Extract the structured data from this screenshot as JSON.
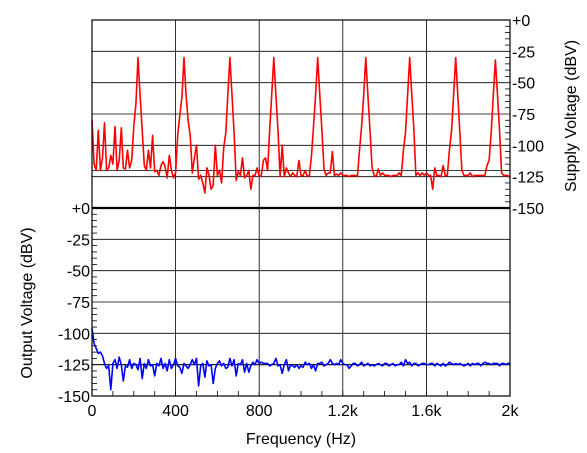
{
  "chart_data": {
    "type": "line",
    "x_unit": "Hz",
    "x_tick_labels": [
      "0",
      "400",
      "800",
      "1.2k",
      "1.6k",
      "2k"
    ],
    "x_ticks": [
      0,
      400,
      800,
      1200,
      1600,
      2000
    ],
    "xlim": [
      0,
      2000
    ],
    "xlabel": "Frequency (Hz)",
    "grid": true,
    "panels": [
      {
        "id": "supply",
        "ylabel": "Supply Voltage (dBV)",
        "y_axis_side": "right",
        "ylim": [
          -150,
          0
        ],
        "y_ticks": [
          0,
          -25,
          -50,
          -75,
          -100,
          -125,
          -150
        ],
        "y_tick_labels": [
          "+0",
          "-25",
          "-50",
          "-75",
          "-100",
          "-125",
          "-150"
        ],
        "series": [
          {
            "color": "#ff0000",
            "noise_floor_dbv": -120,
            "x": [
              0,
              10,
              20,
              30,
              40,
              50,
              60,
              70,
              80,
              90,
              100,
              110,
              120,
              130,
              140,
              150,
              160,
              170,
              180,
              190,
              200,
              210,
              220,
              230,
              240,
              250,
              260,
              270,
              280,
              290,
              300,
              310,
              320,
              330,
              340,
              350,
              360,
              370,
              380,
              390,
              400,
              410,
              420,
              430,
              440,
              450,
              460,
              470,
              480,
              490,
              500,
              510,
              520,
              530,
              540,
              550,
              560,
              570,
              580,
              590,
              600,
              610,
              620,
              630,
              640,
              650,
              660,
              670,
              680,
              690,
              700,
              710,
              720,
              730,
              740,
              750,
              760,
              770,
              780,
              790,
              800,
              810,
              820,
              830,
              840,
              850,
              860,
              870,
              880,
              890,
              900,
              910,
              920,
              930,
              940,
              950,
              960,
              970,
              980,
              990,
              1000,
              1010,
              1020,
              1030,
              1040,
              1050,
              1060,
              1070,
              1080,
              1090,
              1100,
              1110,
              1120,
              1130,
              1140,
              1150,
              1160,
              1170,
              1180,
              1190,
              1200,
              1210,
              1220,
              1230,
              1240,
              1250,
              1260,
              1270,
              1280,
              1290,
              1300,
              1310,
              1320,
              1330,
              1340,
              1350,
              1360,
              1370,
              1380,
              1390,
              1400,
              1410,
              1420,
              1430,
              1440,
              1450,
              1460,
              1470,
              1480,
              1490,
              1500,
              1510,
              1520,
              1530,
              1540,
              1550,
              1560,
              1570,
              1580,
              1590,
              1600,
              1610,
              1620,
              1630,
              1640,
              1650,
              1660,
              1670,
              1680,
              1690,
              1700,
              1710,
              1720,
              1730,
              1740,
              1750,
              1760,
              1770,
              1780,
              1790,
              1800,
              1810,
              1820,
              1830,
              1840,
              1850,
              1860,
              1870,
              1880,
              1890,
              1900,
              1910,
              1920,
              1930,
              1940,
              1950,
              1960,
              1970,
              1980,
              1990,
              2000
            ],
            "y": [
              -80,
              -115,
              -120,
              -88,
              -120,
              -110,
              -82,
              -120,
              -118,
              -108,
              -115,
              -85,
              -120,
              -112,
              -86,
              -118,
              -119,
              -104,
              -118,
              -112,
              -85,
              -67,
              -30,
              -60,
              -88,
              -116,
              -120,
              -104,
              -118,
              -92,
              -121,
              -120,
              -124,
              -116,
              -113,
              -117,
              -126,
              -108,
              -120,
              -126,
              -122,
              -92,
              -76,
              -62,
              -30,
              -60,
              -80,
              -92,
              -122,
              -110,
              -100,
              -127,
              -124,
              -130,
              -138,
              -118,
              -124,
              -135,
              -132,
              -100,
              -124,
              -120,
              -130,
              -102,
              -90,
              -60,
              -30,
              -60,
              -90,
              -128,
              -121,
              -124,
              -110,
              -126,
              -124,
              -120,
              -135,
              -124,
              -124,
              -118,
              -125,
              -124,
              -112,
              -110,
              -120,
              -89,
              -60,
              -30,
              -60,
              -88,
              -125,
              -100,
              -125,
              -118,
              -122,
              -125,
              -122,
              -124,
              -125,
              -112,
              -124,
              -124,
              -120,
              -125,
              -124,
              -108,
              -85,
              -60,
              -30,
              -60,
              -88,
              -119,
              -124,
              -122,
              -122,
              -105,
              -124,
              -123,
              -124,
              -122,
              -124,
              -124,
              -124,
              -125,
              -124,
              -124,
              -124,
              -125,
              -104,
              -85,
              -60,
              -30,
              -60,
              -88,
              -118,
              -124,
              -125,
              -119,
              -124,
              -122,
              -124,
              -124,
              -124,
              -125,
              -124,
              -124,
              -124,
              -122,
              -124,
              -104,
              -90,
              -60,
              -30,
              -60,
              -88,
              -124,
              -122,
              -124,
              -122,
              -124,
              -122,
              -124,
              -124,
              -135,
              -118,
              -124,
              -124,
              -125,
              -116,
              -124,
              -124,
              -104,
              -89,
              -60,
              -30,
              -60,
              -89,
              -120,
              -124,
              -124,
              -124,
              -122,
              -125,
              -124,
              -124,
              -124,
              -124,
              -124,
              -124,
              -116,
              -112,
              -90,
              -60,
              -32,
              -60,
              -89,
              -122,
              -124,
              -124,
              -124,
              -126
            ]
          }
        ]
      },
      {
        "id": "output",
        "ylabel": "Output Voltage (dBV)",
        "y_axis_side": "left",
        "ylim": [
          -150,
          0
        ],
        "y_ticks": [
          0,
          -25,
          -50,
          -75,
          -100,
          -125,
          -150
        ],
        "y_tick_labels": [
          "+0",
          "-25",
          "-50",
          "-75",
          "-100",
          "-125",
          "-150"
        ],
        "series": [
          {
            "color": "#0000ff",
            "noise_floor_dbv": -125,
            "x": [
              0,
              10,
              20,
              30,
              40,
              50,
              60,
              70,
              80,
              90,
              100,
              110,
              120,
              130,
              140,
              150,
              160,
              170,
              180,
              190,
              200,
              210,
              220,
              230,
              240,
              250,
              260,
              270,
              280,
              290,
              300,
              310,
              320,
              330,
              340,
              350,
              360,
              370,
              380,
              390,
              400,
              410,
              420,
              430,
              440,
              450,
              460,
              470,
              480,
              490,
              500,
              510,
              520,
              530,
              540,
              550,
              560,
              570,
              580,
              590,
              600,
              610,
              620,
              630,
              640,
              650,
              660,
              670,
              680,
              690,
              700,
              710,
              720,
              730,
              740,
              750,
              760,
              770,
              780,
              790,
              800,
              810,
              820,
              830,
              840,
              850,
              860,
              870,
              880,
              890,
              900,
              910,
              920,
              930,
              940,
              950,
              960,
              970,
              980,
              990,
              1000,
              1010,
              1020,
              1030,
              1040,
              1050,
              1060,
              1070,
              1080,
              1090,
              1100,
              1110,
              1120,
              1130,
              1140,
              1150,
              1160,
              1170,
              1180,
              1190,
              1200,
              1210,
              1220,
              1230,
              1240,
              1250,
              1260,
              1270,
              1280,
              1290,
              1300,
              1310,
              1320,
              1330,
              1340,
              1350,
              1360,
              1370,
              1380,
              1390,
              1400,
              1410,
              1420,
              1430,
              1440,
              1450,
              1460,
              1470,
              1480,
              1490,
              1500,
              1510,
              1520,
              1530,
              1540,
              1550,
              1560,
              1570,
              1580,
              1590,
              1600,
              1610,
              1620,
              1630,
              1640,
              1650,
              1660,
              1670,
              1680,
              1690,
              1700,
              1710,
              1720,
              1730,
              1740,
              1750,
              1760,
              1770,
              1780,
              1790,
              1800,
              1810,
              1820,
              1830,
              1840,
              1850,
              1860,
              1870,
              1880,
              1890,
              1900,
              1910,
              1920,
              1930,
              1940,
              1950,
              1960,
              1970,
              1980,
              1990,
              2000
            ],
            "y": [
              -96,
              -108,
              -112,
              -116,
              -115,
              -118,
              -124,
              -128,
              -126,
              -145,
              -124,
              -121,
              -128,
              -119,
              -125,
              -138,
              -126,
              -127,
              -121,
              -128,
              -124,
              -125,
              -129,
              -120,
              -136,
              -124,
              -128,
              -121,
              -126,
              -125,
              -134,
              -124,
              -126,
              -120,
              -128,
              -124,
              -130,
              -121,
              -128,
              -125,
              -120,
              -126,
              -127,
              -132,
              -124,
              -126,
              -128,
              -125,
              -121,
              -125,
              -120,
              -142,
              -126,
              -124,
              -135,
              -122,
              -126,
              -125,
              -140,
              -128,
              -124,
              -122,
              -126,
              -124,
              -128,
              -127,
              -120,
              -126,
              -121,
              -134,
              -124,
              -125,
              -121,
              -131,
              -124,
              -131,
              -126,
              -123,
              -125,
              -121,
              -124,
              -123,
              -124,
              -124,
              -124,
              -126,
              -125,
              -124,
              -120,
              -126,
              -125,
              -132,
              -125,
              -121,
              -130,
              -125,
              -126,
              -127,
              -125,
              -128,
              -126,
              -127,
              -123,
              -125,
              -124,
              -128,
              -125,
              -130,
              -124,
              -124,
              -123,
              -126,
              -125,
              -124,
              -121,
              -124,
              -125,
              -124,
              -125,
              -121,
              -124,
              -125,
              -125,
              -128,
              -126,
              -124,
              -124,
              -126,
              -125,
              -123,
              -126,
              -125,
              -124,
              -126,
              -125,
              -126,
              -125,
              -124,
              -125,
              -126,
              -124,
              -124,
              -126,
              -125,
              -124,
              -126,
              -125,
              -125,
              -123,
              -126,
              -121,
              -124,
              -123,
              -126,
              -124,
              -124,
              -126,
              -125,
              -124,
              -124,
              -125,
              -125,
              -124,
              -124,
              -126,
              -124,
              -125,
              -126,
              -124,
              -126,
              -125,
              -123,
              -124,
              -125,
              -124,
              -125,
              -124,
              -125,
              -126,
              -125,
              -124,
              -126,
              -124,
              -125,
              -124,
              -124,
              -126,
              -124,
              -123,
              -124,
              -124,
              -125,
              -124,
              -124,
              -124,
              -126,
              -124,
              -124,
              -125,
              -124,
              -124
            ]
          }
        ]
      }
    ]
  }
}
